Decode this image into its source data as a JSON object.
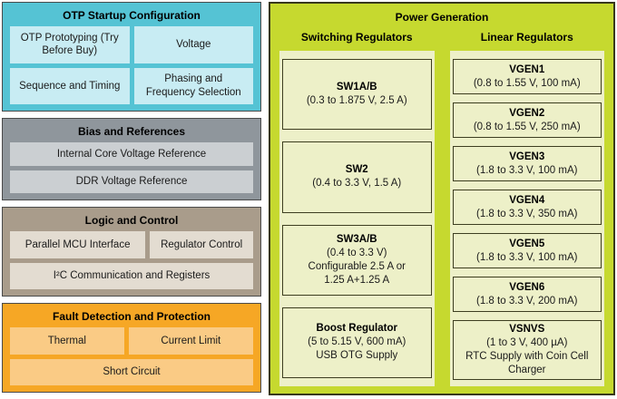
{
  "colors": {
    "left_border": "#4a4a4a",
    "power_generation_bg": "#c6d92f",
    "panel_bg": "#edf0c8",
    "block_border": "#3d3d20"
  },
  "left_sections": [
    {
      "id": "otp",
      "title": "OTP Startup Configuration",
      "header_bg": "#55c3d4",
      "item_bg": "#c8ecf3",
      "rows": [
        [
          "OTP Prototyping (Try Before Buy)",
          "Voltage"
        ],
        [
          "Sequence and Timing",
          "Phasing and Frequency Selection"
        ]
      ]
    },
    {
      "id": "bias",
      "title": "Bias and References",
      "header_bg": "#8f969c",
      "item_bg": "#cbcfd2",
      "rows": [
        [
          "Internal Core Voltage Reference"
        ],
        [
          "DDR Voltage Reference"
        ]
      ]
    },
    {
      "id": "logic",
      "title": "Logic and Control",
      "header_bg": "#a99c8b",
      "item_bg": "#e3dcd1",
      "rows": [
        [
          "Parallel MCU Interface",
          "Regulator Control"
        ],
        [
          "I²C Communication and Registers"
        ]
      ]
    },
    {
      "id": "fault",
      "title": "Fault Detection and Protection",
      "header_bg": "#f6a725",
      "item_bg": "#facb85",
      "rows": [
        [
          "Thermal",
          "Current Limit"
        ],
        [
          "Short Circuit"
        ]
      ]
    }
  ],
  "power_generation": {
    "title": "Power Generation",
    "columns": [
      {
        "id": "switching",
        "header": "Switching Regulators",
        "blocks": [
          {
            "title": "SW1A/B",
            "lines": [
              "(0.3 to 1.875 V,  2.5 A)"
            ]
          },
          {
            "title": "SW2",
            "lines": [
              "(0.4 to 3.3 V, 1.5 A)"
            ]
          },
          {
            "title": "SW3A/B",
            "lines": [
              "(0.4 to 3.3 V)",
              "Configurable 2.5 A or",
              "1.25 A+1.25 A"
            ]
          },
          {
            "title": "Boost Regulator",
            "lines": [
              "(5 to 5.15 V, 600 mA)",
              "USB OTG Supply"
            ]
          }
        ]
      },
      {
        "id": "linear",
        "header": "Linear Regulators",
        "blocks": [
          {
            "title": "VGEN1",
            "lines": [
              "(0.8 to 1.55 V, 100 mA)"
            ]
          },
          {
            "title": "VGEN2",
            "lines": [
              "(0.8 to 1.55 V, 250 mA)"
            ]
          },
          {
            "title": "VGEN3",
            "lines": [
              "(1.8 to 3.3 V, 100 mA)"
            ]
          },
          {
            "title": "VGEN4",
            "lines": [
              "(1.8 to 3.3 V, 350 mA)"
            ]
          },
          {
            "title": "VGEN5",
            "lines": [
              "(1.8 to 3.3 V, 100 mA)"
            ]
          },
          {
            "title": "VGEN6",
            "lines": [
              "(1.8 to 3.3 V, 200 mA)"
            ]
          },
          {
            "title": "VSNVS",
            "lines": [
              "(1 to 3 V, 400 µA)",
              "RTC Supply with Coin Cell Charger"
            ]
          }
        ]
      }
    ]
  }
}
